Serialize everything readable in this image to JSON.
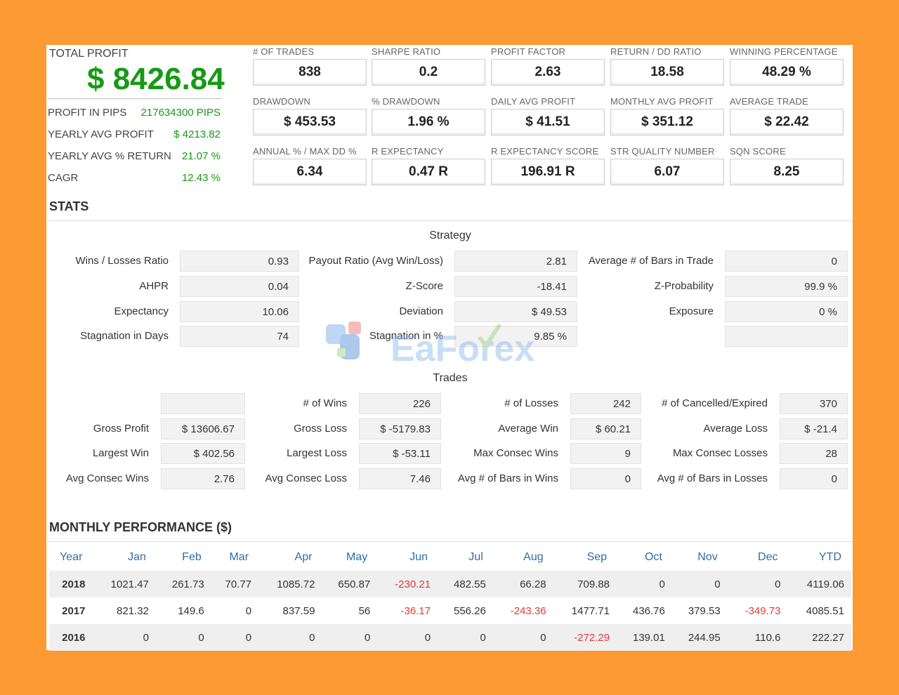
{
  "total_profit": {
    "title": "TOTAL PROFIT",
    "value": "$ 8426.84",
    "rows": [
      {
        "label": "PROFIT IN PIPS",
        "value": "217634300 PIPS"
      },
      {
        "label": "YEARLY AVG PROFIT",
        "value": "$ 4213.82"
      },
      {
        "label": "YEARLY AVG % RETURN",
        "value": "21.07 %"
      },
      {
        "label": "CAGR",
        "value": "12.43 %"
      }
    ]
  },
  "metrics": [
    {
      "label": "# OF TRADES",
      "value": "838"
    },
    {
      "label": "SHARPE RATIO",
      "value": "0.2"
    },
    {
      "label": "PROFIT FACTOR",
      "value": "2.63"
    },
    {
      "label": "RETURN / DD RATIO",
      "value": "18.58"
    },
    {
      "label": "WINNING PERCENTAGE",
      "value": "48.29 %"
    },
    {
      "label": "DRAWDOWN",
      "value": "$ 453.53"
    },
    {
      "label": "% DRAWDOWN",
      "value": "1.96 %"
    },
    {
      "label": "DAILY AVG PROFIT",
      "value": "$ 41.51"
    },
    {
      "label": "MONTHLY AVG PROFIT",
      "value": "$ 351.12"
    },
    {
      "label": "AVERAGE TRADE",
      "value": "$ 22.42"
    },
    {
      "label": "ANNUAL % / MAX DD %",
      "value": "6.34"
    },
    {
      "label": "R EXPECTANCY",
      "value": "0.47 R"
    },
    {
      "label": "R EXPECTANCY SCORE",
      "value": "196.91 R"
    },
    {
      "label": "STR QUALITY NUMBER",
      "value": "6.07"
    },
    {
      "label": "SQN SCORE",
      "value": "8.25"
    }
  ],
  "stats_title": "STATS",
  "strategy": {
    "title": "Strategy",
    "rows": [
      [
        {
          "label": "Wins / Losses Ratio",
          "value": "0.93"
        },
        {
          "label": "Payout Ratio (Avg Win/Loss)",
          "value": "2.81"
        },
        {
          "label": "Average # of Bars in Trade",
          "value": "0"
        }
      ],
      [
        {
          "label": "AHPR",
          "value": "0.04"
        },
        {
          "label": "Z-Score",
          "value": "-18.41"
        },
        {
          "label": "Z-Probability",
          "value": "99.9 %"
        }
      ],
      [
        {
          "label": "Expectancy",
          "value": "10.06"
        },
        {
          "label": "Deviation",
          "value": "$ 49.53"
        },
        {
          "label": "Exposure",
          "value": "0 %"
        }
      ],
      [
        {
          "label": "Stagnation in Days",
          "value": "74"
        },
        {
          "label": "Stagnation in %",
          "value": "9.85 %"
        },
        {
          "label": "",
          "value": ""
        }
      ]
    ]
  },
  "trades": {
    "title": "Trades",
    "rows": [
      [
        {
          "label": "",
          "value": ""
        },
        {
          "label": "# of Wins",
          "value": "226"
        },
        {
          "label": "# of Losses",
          "value": "242"
        },
        {
          "label": "# of Cancelled/Expired",
          "value": "370"
        }
      ],
      [
        {
          "label": "Gross Profit",
          "value": "$ 13606.67"
        },
        {
          "label": "Gross Loss",
          "value": "$ -5179.83"
        },
        {
          "label": "Average Win",
          "value": "$ 60.21"
        },
        {
          "label": "Average Loss",
          "value": "$ -21.4"
        }
      ],
      [
        {
          "label": "Largest Win",
          "value": "$ 402.56"
        },
        {
          "label": "Largest Loss",
          "value": "$ -53.11"
        },
        {
          "label": "Max Consec Wins",
          "value": "9"
        },
        {
          "label": "Max Consec Losses",
          "value": "28"
        }
      ],
      [
        {
          "label": "Avg Consec Wins",
          "value": "2.76"
        },
        {
          "label": "Avg Consec Loss",
          "value": "7.46"
        },
        {
          "label": "Avg # of Bars in Wins",
          "value": "0"
        },
        {
          "label": "Avg # of Bars in Losses",
          "value": "0"
        }
      ]
    ]
  },
  "monthly": {
    "title": "MONTHLY PERFORMANCE ($)",
    "headers": [
      "Year",
      "Jan",
      "Feb",
      "Mar",
      "Apr",
      "May",
      "Jun",
      "Jul",
      "Aug",
      "Sep",
      "Oct",
      "Nov",
      "Dec",
      "YTD"
    ],
    "rows": [
      [
        "2018",
        "1021.47",
        "261.73",
        "70.77",
        "1085.72",
        "650.87",
        "-230.21",
        "482.55",
        "66.28",
        "709.88",
        "0",
        "0",
        "0",
        "4119.06"
      ],
      [
        "2017",
        "821.32",
        "149.6",
        "0",
        "837.59",
        "56",
        "-36.17",
        "556.26",
        "-243.36",
        "1477.71",
        "436.76",
        "379.53",
        "-349.73",
        "4085.51"
      ],
      [
        "2016",
        "0",
        "0",
        "0",
        "0",
        "0",
        "0",
        "0",
        "0",
        "-272.29",
        "139.01",
        "244.95",
        "110.6",
        "222.27"
      ]
    ]
  },
  "watermark": "EaForex",
  "colors": {
    "background": "#fe9a33",
    "profit_green": "#169a16",
    "negative_red": "#e53935",
    "header_blue": "#2f6da8"
  }
}
